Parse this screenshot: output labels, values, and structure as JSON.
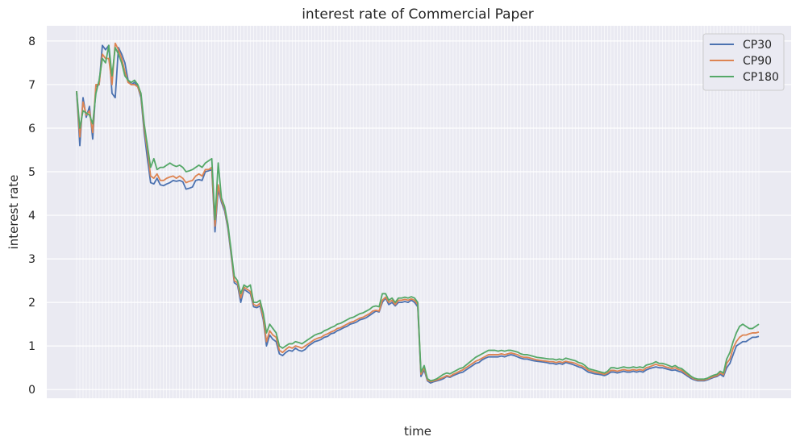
{
  "chart_data": {
    "type": "line",
    "title": "interest rate of Commercial Paper",
    "xlabel": "time",
    "ylabel": "interest rate",
    "ylim": [
      -0.2,
      8.35
    ],
    "yticks": [
      0,
      1,
      2,
      3,
      4,
      5,
      6,
      7,
      8
    ],
    "grid": true,
    "legend_position": "top-right",
    "colors": {
      "CP30": "#4c72b0",
      "CP90": "#dd8452",
      "CP180": "#55a868"
    },
    "series": [
      {
        "name": "CP30",
        "values": [
          6.82,
          5.6,
          6.7,
          6.25,
          6.5,
          5.75,
          6.95,
          7.0,
          7.9,
          7.8,
          7.9,
          6.8,
          6.7,
          7.85,
          7.7,
          7.5,
          7.1,
          7.0,
          7.05,
          6.95,
          6.7,
          5.9,
          5.3,
          4.75,
          4.72,
          4.85,
          4.7,
          4.68,
          4.72,
          4.75,
          4.8,
          4.78,
          4.8,
          4.77,
          4.6,
          4.62,
          4.65,
          4.8,
          4.82,
          4.8,
          5.0,
          5.02,
          5.05,
          3.62,
          4.6,
          4.3,
          4.1,
          3.7,
          3.1,
          2.45,
          2.4,
          2.0,
          2.3,
          2.25,
          2.2,
          1.9,
          1.88,
          1.92,
          1.6,
          1.0,
          1.25,
          1.15,
          1.1,
          0.82,
          0.78,
          0.85,
          0.9,
          0.88,
          0.95,
          0.9,
          0.88,
          0.92,
          1.0,
          1.05,
          1.1,
          1.12,
          1.15,
          1.2,
          1.22,
          1.28,
          1.3,
          1.35,
          1.38,
          1.42,
          1.45,
          1.5,
          1.52,
          1.55,
          1.6,
          1.62,
          1.65,
          1.7,
          1.75,
          1.8,
          1.78,
          2.0,
          2.1,
          1.95,
          2.0,
          1.92,
          2.0,
          2.0,
          2.02,
          2.0,
          2.05,
          2.0,
          1.9,
          0.3,
          0.45,
          0.2,
          0.15,
          0.18,
          0.2,
          0.22,
          0.25,
          0.3,
          0.28,
          0.32,
          0.35,
          0.38,
          0.4,
          0.45,
          0.5,
          0.55,
          0.6,
          0.62,
          0.68,
          0.72,
          0.75,
          0.75,
          0.75,
          0.75,
          0.77,
          0.75,
          0.78,
          0.8,
          0.78,
          0.75,
          0.72,
          0.7,
          0.7,
          0.68,
          0.66,
          0.65,
          0.64,
          0.63,
          0.62,
          0.6,
          0.6,
          0.58,
          0.6,
          0.58,
          0.62,
          0.6,
          0.58,
          0.55,
          0.52,
          0.5,
          0.45,
          0.4,
          0.38,
          0.36,
          0.35,
          0.34,
          0.32,
          0.35,
          0.4,
          0.4,
          0.38,
          0.4,
          0.42,
          0.4,
          0.4,
          0.42,
          0.4,
          0.42,
          0.4,
          0.45,
          0.48,
          0.5,
          0.52,
          0.5,
          0.5,
          0.48,
          0.46,
          0.44,
          0.45,
          0.42,
          0.4,
          0.35,
          0.3,
          0.25,
          0.22,
          0.2,
          0.2,
          0.2,
          0.22,
          0.25,
          0.28,
          0.3,
          0.35,
          0.3,
          0.5,
          0.6,
          0.8,
          1.0,
          1.05,
          1.1,
          1.1,
          1.15,
          1.2,
          1.2,
          1.22
        ]
      },
      {
        "name": "CP90",
        "values": [
          6.85,
          5.8,
          6.6,
          6.3,
          6.4,
          5.9,
          7.0,
          7.0,
          7.7,
          7.6,
          7.6,
          7.0,
          7.95,
          7.8,
          7.6,
          7.3,
          7.05,
          7.0,
          7.0,
          6.95,
          6.75,
          6.0,
          5.5,
          4.9,
          4.85,
          4.95,
          4.8,
          4.8,
          4.85,
          4.88,
          4.9,
          4.85,
          4.9,
          4.85,
          4.75,
          4.78,
          4.8,
          4.9,
          4.95,
          4.9,
          5.05,
          5.05,
          5.1,
          3.75,
          4.7,
          4.35,
          4.15,
          3.75,
          3.15,
          2.5,
          2.45,
          2.1,
          2.35,
          2.3,
          2.25,
          1.95,
          1.92,
          1.98,
          1.65,
          1.1,
          1.35,
          1.25,
          1.2,
          0.9,
          0.85,
          0.92,
          0.98,
          0.95,
          1.0,
          0.98,
          0.95,
          1.0,
          1.05,
          1.1,
          1.15,
          1.18,
          1.2,
          1.25,
          1.28,
          1.32,
          1.35,
          1.4,
          1.42,
          1.46,
          1.5,
          1.54,
          1.56,
          1.6,
          1.64,
          1.66,
          1.7,
          1.74,
          1.8,
          1.82,
          1.8,
          2.05,
          2.12,
          2.0,
          2.05,
          1.95,
          2.05,
          2.05,
          2.07,
          2.05,
          2.08,
          2.05,
          1.95,
          0.35,
          0.5,
          0.22,
          0.18,
          0.2,
          0.22,
          0.25,
          0.28,
          0.32,
          0.3,
          0.35,
          0.38,
          0.42,
          0.45,
          0.5,
          0.55,
          0.6,
          0.65,
          0.68,
          0.72,
          0.76,
          0.8,
          0.8,
          0.8,
          0.8,
          0.82,
          0.8,
          0.82,
          0.84,
          0.82,
          0.8,
          0.76,
          0.74,
          0.74,
          0.72,
          0.7,
          0.68,
          0.67,
          0.66,
          0.65,
          0.64,
          0.64,
          0.62,
          0.64,
          0.62,
          0.65,
          0.63,
          0.62,
          0.6,
          0.56,
          0.54,
          0.5,
          0.44,
          0.42,
          0.4,
          0.38,
          0.37,
          0.35,
          0.38,
          0.44,
          0.44,
          0.42,
          0.44,
          0.46,
          0.44,
          0.44,
          0.46,
          0.44,
          0.46,
          0.44,
          0.5,
          0.52,
          0.55,
          0.58,
          0.55,
          0.55,
          0.52,
          0.5,
          0.48,
          0.5,
          0.46,
          0.44,
          0.38,
          0.33,
          0.28,
          0.24,
          0.22,
          0.22,
          0.22,
          0.24,
          0.27,
          0.3,
          0.32,
          0.38,
          0.34,
          0.6,
          0.7,
          0.95,
          1.1,
          1.2,
          1.25,
          1.25,
          1.28,
          1.3,
          1.3,
          1.32
        ]
      },
      {
        "name": "CP180",
        "values": [
          6.85,
          6.0,
          6.4,
          6.35,
          6.3,
          6.1,
          6.8,
          7.1,
          7.6,
          7.5,
          7.9,
          7.2,
          7.85,
          7.7,
          7.5,
          7.2,
          7.1,
          7.05,
          7.1,
          7.0,
          6.8,
          6.1,
          5.6,
          5.1,
          5.3,
          5.05,
          5.1,
          5.1,
          5.15,
          5.2,
          5.15,
          5.12,
          5.15,
          5.1,
          5.0,
          5.02,
          5.05,
          5.1,
          5.15,
          5.1,
          5.2,
          5.25,
          5.3,
          3.9,
          5.2,
          4.4,
          4.2,
          3.8,
          3.2,
          2.6,
          2.5,
          2.2,
          2.4,
          2.35,
          2.4,
          2.0,
          2.0,
          2.05,
          1.75,
          1.3,
          1.5,
          1.4,
          1.3,
          1.0,
          0.95,
          1.0,
          1.05,
          1.05,
          1.1,
          1.08,
          1.05,
          1.1,
          1.15,
          1.2,
          1.25,
          1.28,
          1.3,
          1.35,
          1.38,
          1.42,
          1.45,
          1.5,
          1.52,
          1.56,
          1.6,
          1.64,
          1.66,
          1.7,
          1.74,
          1.76,
          1.8,
          1.84,
          1.9,
          1.92,
          1.9,
          2.2,
          2.2,
          2.05,
          2.1,
          2.0,
          2.1,
          2.1,
          2.12,
          2.1,
          2.13,
          2.1,
          2.0,
          0.4,
          0.55,
          0.25,
          0.2,
          0.22,
          0.25,
          0.3,
          0.35,
          0.38,
          0.36,
          0.4,
          0.44,
          0.48,
          0.5,
          0.56,
          0.62,
          0.68,
          0.74,
          0.78,
          0.82,
          0.86,
          0.9,
          0.9,
          0.9,
          0.88,
          0.9,
          0.88,
          0.9,
          0.9,
          0.88,
          0.86,
          0.82,
          0.8,
          0.8,
          0.78,
          0.76,
          0.74,
          0.73,
          0.72,
          0.71,
          0.7,
          0.7,
          0.68,
          0.7,
          0.68,
          0.72,
          0.7,
          0.68,
          0.66,
          0.62,
          0.6,
          0.55,
          0.48,
          0.46,
          0.44,
          0.42,
          0.4,
          0.38,
          0.42,
          0.5,
          0.5,
          0.48,
          0.5,
          0.52,
          0.5,
          0.5,
          0.52,
          0.5,
          0.52,
          0.5,
          0.56,
          0.58,
          0.6,
          0.64,
          0.6,
          0.6,
          0.58,
          0.55,
          0.52,
          0.55,
          0.5,
          0.48,
          0.42,
          0.36,
          0.3,
          0.26,
          0.24,
          0.24,
          0.24,
          0.26,
          0.3,
          0.33,
          0.35,
          0.42,
          0.38,
          0.7,
          0.85,
          1.1,
          1.3,
          1.45,
          1.5,
          1.45,
          1.4,
          1.4,
          1.45,
          1.5
        ]
      }
    ]
  }
}
